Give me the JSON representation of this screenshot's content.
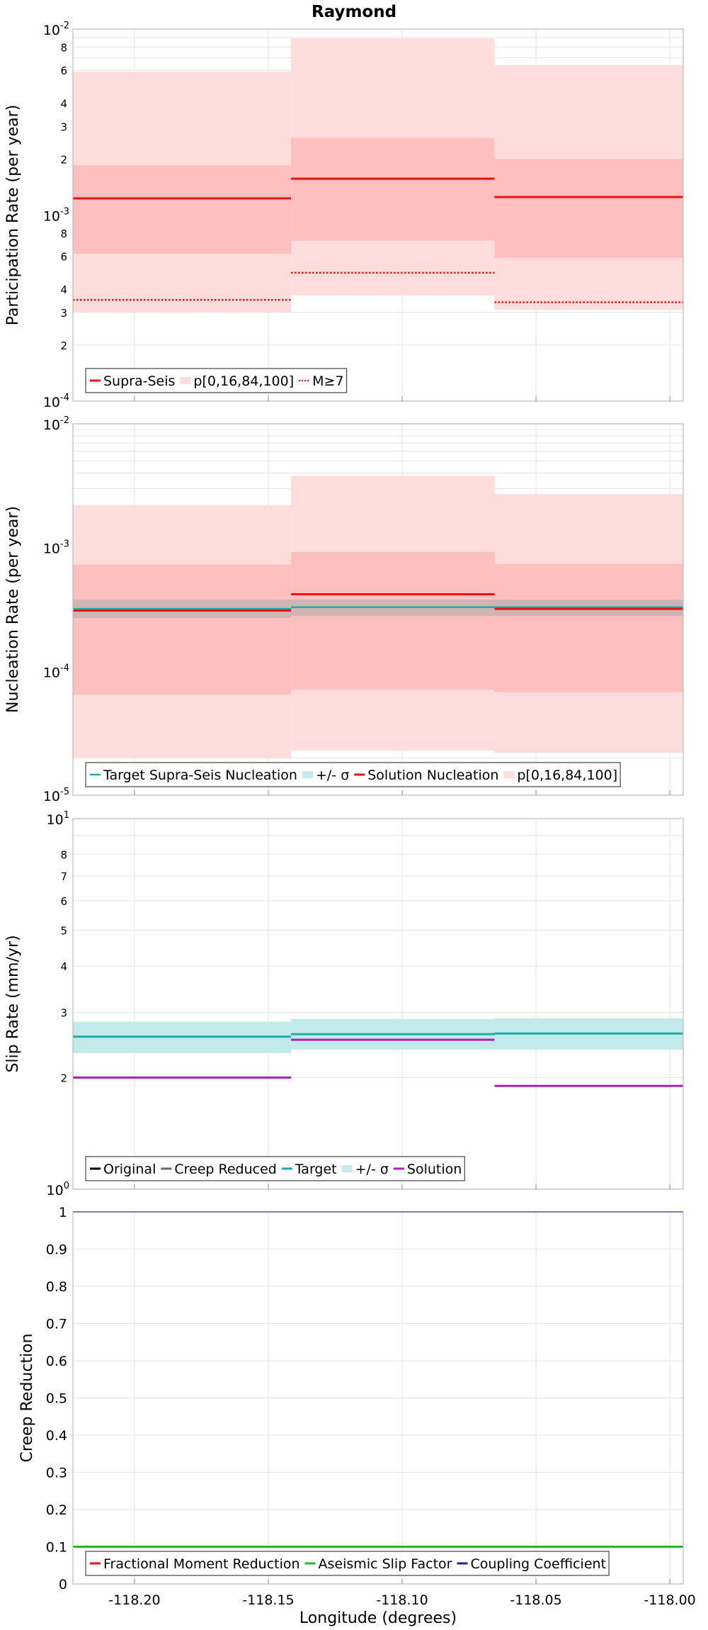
{
  "figure": {
    "title": "Raymond",
    "xlabel": "Longitude (degrees)"
  },
  "chart_data": [
    {
      "type": "line",
      "ylabel": "Participation Rate (per year)",
      "yscale": "log",
      "ylim": [
        0.0001,
        0.01
      ],
      "xlim": [
        -118.223,
        -117.995
      ],
      "x_ticks": [
        "-118.20",
        "-118.15",
        "-118.10",
        "-118.05",
        "-118.00"
      ],
      "y_major_ticks": [
        {
          "base": "10",
          "exp": "-4",
          "value": 0.0001
        },
        {
          "base": "10",
          "exp": "-3",
          "value": 0.001
        },
        {
          "base": "10",
          "exp": "-2",
          "value": 0.01
        }
      ],
      "y_minor_labels": [
        "2",
        "3",
        "4",
        "6",
        "8"
      ],
      "legend": [
        "Supra-Seis",
        "p[0,16,84,100]",
        "M≥7"
      ],
      "segments": [
        {
          "x0": -118.223,
          "x1": -118.1415,
          "p0": 0.0003,
          "p16": 0.00062,
          "value": 0.00123,
          "p84": 0.00185,
          "p100": 0.0059,
          "m7": 0.00035
        },
        {
          "x0": -118.1415,
          "x1": -118.0655,
          "p0": 0.00037,
          "p16": 0.00073,
          "value": 0.00157,
          "p84": 0.0026,
          "p100": 0.0089,
          "m7": 0.00049
        },
        {
          "x0": -118.0655,
          "x1": -117.995,
          "p0": 0.00031,
          "p16": 0.00059,
          "value": 0.00125,
          "p84": 0.002,
          "p100": 0.0064,
          "m7": 0.00034
        }
      ]
    },
    {
      "type": "line",
      "ylabel": "Nucleation Rate (per year)",
      "yscale": "log",
      "ylim": [
        1e-05,
        0.01
      ],
      "xlim": [
        -118.223,
        -117.995
      ],
      "x_ticks": [
        "-118.20",
        "-118.15",
        "-118.10",
        "-118.05",
        "-118.00"
      ],
      "y_major_ticks": [
        {
          "base": "10",
          "exp": "-5",
          "value": 1e-05
        },
        {
          "base": "10",
          "exp": "-4",
          "value": 0.0001
        },
        {
          "base": "10",
          "exp": "-3",
          "value": 0.001
        },
        {
          "base": "10",
          "exp": "-2",
          "value": 0.01
        }
      ],
      "legend": [
        "Target Supra-Seis Nucleation",
        "+/- σ",
        "Solution Nucleation",
        "p[0,16,84,100]"
      ],
      "segments": [
        {
          "x0": -118.223,
          "x1": -118.1415,
          "p0": 2e-05,
          "p16": 6.5e-05,
          "value": 0.00031,
          "p84": 0.00073,
          "p100": 0.0022,
          "target": 0.00032,
          "target_lo": 0.00027,
          "target_hi": 0.00038
        },
        {
          "x0": -118.1415,
          "x1": -118.0655,
          "p0": 2.3e-05,
          "p16": 7.1e-05,
          "value": 0.00042,
          "p84": 0.00092,
          "p100": 0.0038,
          "target": 0.00033,
          "target_lo": 0.00028,
          "target_hi": 0.00038
        },
        {
          "x0": -118.0655,
          "x1": -117.995,
          "p0": 2.2e-05,
          "p16": 6.8e-05,
          "value": 0.00032,
          "p84": 0.00074,
          "p100": 0.0027,
          "target": 0.00033,
          "target_lo": 0.00028,
          "target_hi": 0.00038
        }
      ]
    },
    {
      "type": "line",
      "ylabel": "Slip Rate (mm/yr)",
      "yscale": "log",
      "ylim": [
        1,
        10
      ],
      "xlim": [
        -118.223,
        -117.995
      ],
      "x_ticks": [
        "-118.20",
        "-118.15",
        "-118.10",
        "-118.05",
        "-118.00"
      ],
      "y_major_ticks": [
        {
          "base": "10",
          "exp": "0",
          "value": 1
        },
        {
          "base": "10",
          "exp": "1",
          "value": 10
        }
      ],
      "y_minor_labels": [
        "2",
        "3",
        "4",
        "5",
        "6",
        "7",
        "8"
      ],
      "legend": [
        "Original",
        "Creep Reduced",
        "Target",
        "+/- σ",
        "Solution"
      ],
      "segments": [
        {
          "x0": -118.223,
          "x1": -118.1415,
          "target": 2.58,
          "target_lo": 2.33,
          "target_hi": 2.83,
          "solution": 2.0
        },
        {
          "x0": -118.1415,
          "x1": -118.0655,
          "target": 2.62,
          "target_lo": 2.38,
          "target_hi": 2.88,
          "solution": 2.53
        },
        {
          "x0": -118.0655,
          "x1": -117.995,
          "target": 2.63,
          "target_lo": 2.38,
          "target_hi": 2.89,
          "solution": 1.9
        }
      ]
    },
    {
      "type": "line",
      "ylabel": "Creep Reduction",
      "yscale": "linear",
      "ylim": [
        0,
        1
      ],
      "xlim": [
        -118.223,
        -117.995
      ],
      "x_ticks": [
        "-118.20",
        "-118.15",
        "-118.10",
        "-118.05",
        "-118.00"
      ],
      "y_ticks": [
        "0",
        "0.1",
        "0.2",
        "0.3",
        "0.4",
        "0.5",
        "0.6",
        "0.7",
        "0.8",
        "0.9",
        "1"
      ],
      "legend": [
        "Fractional Moment Reduction",
        "Aseismic Slip Factor",
        "Coupling Coefficient"
      ],
      "series": [
        {
          "name": "Aseismic Slip Factor",
          "value": 0.1
        },
        {
          "name": "Coupling Coefficient",
          "value": 1.0
        }
      ]
    }
  ],
  "colors": {
    "solution_red": "#ee1111",
    "band_outer": "#ffdddd",
    "band_inner": "#ffbfbf",
    "target_teal": "#22aaaa",
    "sigma_band": "#c2eaea",
    "creep_gray": "#aaaaaa",
    "solution_purple": "#aa22bb",
    "green": "#22bb22",
    "navy": "#222299",
    "grid": "#e4e4e4",
    "frame": "#bbbbbb"
  }
}
